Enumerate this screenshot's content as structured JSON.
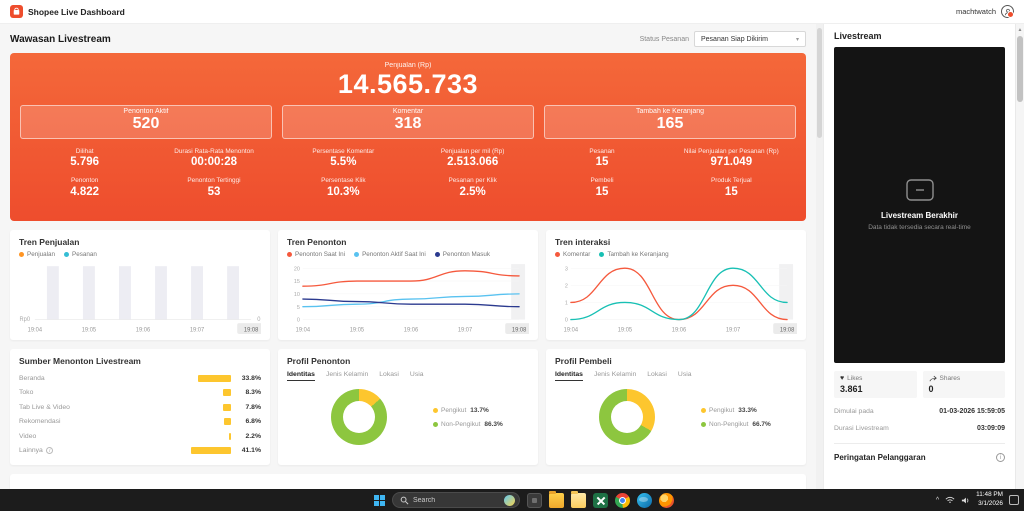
{
  "header": {
    "brand": "Shopee Live Dashboard",
    "account": "machtwatch"
  },
  "toolbar": {
    "page_title": "Wawasan Livestream",
    "status_filter_label": "Status Pesanan",
    "status_filter_value": "Pesanan Siap Dikirim"
  },
  "overview": {
    "main_metric": {
      "label": "Penjualan (Rp)",
      "value": "14.565.733"
    },
    "highlights": [
      {
        "label": "Penonton Aktif",
        "value": "520"
      },
      {
        "label": "Komentar",
        "value": "318"
      },
      {
        "label": "Tambah ke Keranjang",
        "value": "165"
      }
    ],
    "metrics_row1": [
      {
        "label": "Dilihat",
        "value": "5.796"
      },
      {
        "label": "Durasi Rata-Rata Menonton",
        "value": "00:00:28"
      },
      {
        "label": "Persentase Komentar",
        "value": "5.5%"
      },
      {
        "label": "Penjualan per mil (Rp)",
        "value": "2.513.066"
      },
      {
        "label": "Pesanan",
        "value": "15"
      },
      {
        "label": "Nilai Penjualan per Pesanan (Rp)",
        "value": "971.049"
      }
    ],
    "metrics_row2": [
      {
        "label": "Penonton",
        "value": "4.822"
      },
      {
        "label": "Penonton Tertinggi",
        "value": "53"
      },
      {
        "label": "Persentase Klik",
        "value": "10.3%"
      },
      {
        "label": "Pesanan per Klik",
        "value": "2.5%"
      },
      {
        "label": "Pembeli",
        "value": "15"
      },
      {
        "label": "Produk Terjual",
        "value": "15"
      }
    ]
  },
  "cards": {
    "profil_tabs": [
      "Identitas",
      "Jenis Kelamin",
      "Lokasi",
      "Usia"
    ]
  },
  "livestream": {
    "title": "Livestream",
    "ended_title": "Livestream Berakhir",
    "ended_subtitle": "Data tidak tersedia secara real-time",
    "likes_label": "Likes",
    "likes_value": "3.861",
    "shares_label": "Shares",
    "shares_value": "0",
    "started_label": "Dimulai pada",
    "started_value": "01-03-2026 15:59:05",
    "duration_label": "Durasi Livestream",
    "duration_value": "03:09:09",
    "violation_title": "Peringatan Pelanggaran"
  },
  "taskbar": {
    "search_placeholder": "Search",
    "time": "11:48 PM",
    "date": "3/1/2026"
  },
  "chart_data": [
    {
      "id": "tren-penjualan",
      "type": "bar",
      "title": "Tren Penjualan",
      "x": [
        "19:04",
        "19:05",
        "19:06",
        "19:07",
        "19:08"
      ],
      "y_left": "Rp0",
      "y_right": "0",
      "series": [
        {
          "name": "Penjualan",
          "color": "#ff9524",
          "values": [
            0,
            0,
            0,
            0,
            0
          ]
        },
        {
          "name": "Pesanan",
          "color": "#35bdd4",
          "values": [
            0,
            0,
            0,
            0,
            0
          ]
        }
      ]
    },
    {
      "id": "tren-penonton",
      "type": "line",
      "title": "Tren Penonton",
      "x": [
        "19:04",
        "19:05",
        "19:06",
        "19:07",
        "19:08"
      ],
      "ylim": [
        0,
        20
      ],
      "yticks": [
        0,
        5,
        10,
        15,
        20
      ],
      "series": [
        {
          "name": "Penonton Saat Ini",
          "color": "#f5593d",
          "values": [
            13,
            15,
            15,
            19,
            17
          ]
        },
        {
          "name": "Penonton Aktif Saat Ini",
          "color": "#59c2f0",
          "values": [
            5,
            6,
            8,
            9,
            10
          ]
        },
        {
          "name": "Penonton Masuk",
          "color": "#2b3a8f",
          "values": [
            8,
            7,
            6,
            6,
            5
          ]
        }
      ]
    },
    {
      "id": "tren-interaksi",
      "type": "line",
      "title": "Tren interaksi",
      "x": [
        "19:04",
        "19:05",
        "19:06",
        "19:07",
        "19:08"
      ],
      "ylim": [
        0,
        3
      ],
      "yticks": [
        0,
        1,
        2,
        3
      ],
      "series": [
        {
          "name": "Komentar",
          "color": "#f5593d",
          "values": [
            1,
            3,
            0,
            2,
            0
          ]
        },
        {
          "name": "Tambah ke Keranjang",
          "color": "#18c0b4",
          "values": [
            0,
            1,
            0,
            3,
            1
          ]
        }
      ]
    },
    {
      "id": "sumber-menonton",
      "type": "bar",
      "title": "Sumber Menonton Livestream",
      "categories": [
        "Beranda",
        "Toko",
        "Tab Live & Video",
        "Rekomendasi",
        "Video",
        "Lainnya"
      ],
      "values": [
        33.8,
        8.3,
        7.8,
        6.8,
        2.2,
        41.1
      ],
      "value_labels": [
        "33.8%",
        "8.3%",
        "7.8%",
        "6.8%",
        "2.2%",
        "41.1%"
      ],
      "color": "#fdc62e"
    },
    {
      "id": "profil-penonton",
      "type": "pie",
      "title": "Profil Penonton",
      "slices": [
        {
          "label": "Pengikut",
          "pct": 13.7,
          "pct_label": "13.7%",
          "color": "#fdc62e"
        },
        {
          "label": "Non-Pengikut",
          "pct": 86.3,
          "pct_label": "86.3%",
          "color": "#8dc63f"
        }
      ]
    },
    {
      "id": "profil-pembeli",
      "type": "pie",
      "title": "Profil Pembeli",
      "slices": [
        {
          "label": "Pengikut",
          "pct": 33.3,
          "pct_label": "33.3%",
          "color": "#fdc62e"
        },
        {
          "label": "Non-Pengikut",
          "pct": 66.7,
          "pct_label": "66.7%",
          "color": "#8dc63f"
        }
      ]
    }
  ]
}
